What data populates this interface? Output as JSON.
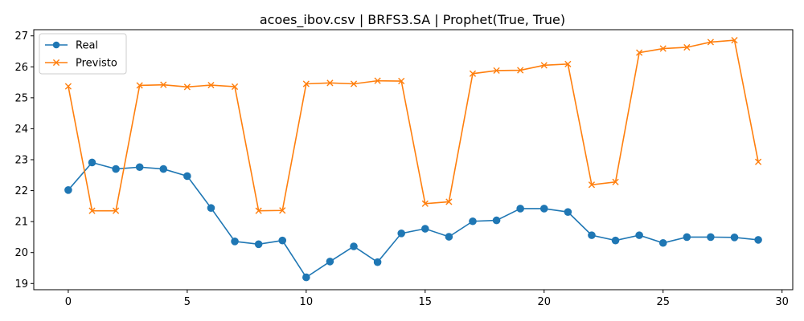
{
  "chart_data": {
    "type": "line",
    "title": "acoes_ibov.csv | BRFS3.SA | Prophet(True, True)",
    "xlabel": "",
    "ylabel": "",
    "x": [
      0,
      1,
      2,
      3,
      4,
      5,
      6,
      7,
      8,
      9,
      10,
      11,
      12,
      13,
      14,
      15,
      16,
      17,
      18,
      19,
      20,
      21,
      22,
      23,
      24,
      25,
      26,
      27,
      28,
      29
    ],
    "xlim": [
      -1.45,
      30.45
    ],
    "ylim": [
      18.8,
      27.2
    ],
    "xticks": [
      0,
      5,
      10,
      15,
      20,
      25,
      30
    ],
    "yticks": [
      19,
      20,
      21,
      22,
      23,
      24,
      25,
      26,
      27
    ],
    "grid": false,
    "legend_position": "top-left",
    "series": [
      {
        "name": "Real",
        "color": "#1f77b4",
        "marker": "circle",
        "values": [
          22.02,
          22.91,
          22.7,
          22.76,
          22.7,
          22.47,
          21.44,
          20.36,
          20.27,
          20.39,
          19.2,
          19.71,
          20.2,
          19.69,
          20.62,
          20.77,
          20.51,
          21.01,
          21.04,
          21.42,
          21.42,
          21.31,
          20.56,
          20.39,
          20.56,
          20.31,
          20.5,
          20.5,
          20.49,
          20.41
        ]
      },
      {
        "name": "Previsto",
        "color": "#ff7f0e",
        "marker": "x",
        "values": [
          25.37,
          21.35,
          21.35,
          25.4,
          25.42,
          25.35,
          25.41,
          25.36,
          21.35,
          21.36,
          25.45,
          25.48,
          25.45,
          25.55,
          25.54,
          21.58,
          21.64,
          25.78,
          25.88,
          25.89,
          26.05,
          26.09,
          22.19,
          22.28,
          26.46,
          26.59,
          26.63,
          26.8,
          26.86,
          22.93
        ]
      }
    ]
  }
}
